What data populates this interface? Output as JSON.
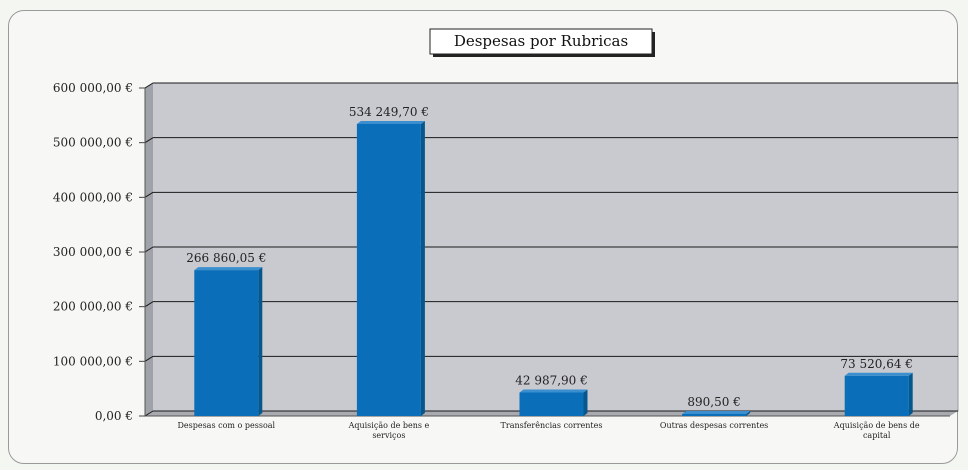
{
  "chart_data": {
    "type": "bar",
    "title": "Despesas por Rubricas",
    "categories": [
      [
        "Despesas com o pessoal"
      ],
      [
        "Aquisição de bens e",
        "serviços"
      ],
      [
        "Transferências correntes"
      ],
      [
        "Outras despesas correntes"
      ],
      [
        "Aquisição de bens de",
        "capital"
      ]
    ],
    "values": [
      266860.05,
      534249.7,
      42987.9,
      890.5,
      73520.64
    ],
    "value_labels": [
      "266 860,05 €",
      "534 249,70 €",
      "42 987,90 €",
      "890,50 €",
      "73 520,64 €"
    ],
    "yticks": [
      0,
      100000,
      200000,
      300000,
      400000,
      500000,
      600000
    ],
    "ytick_labels": [
      "0,00 €",
      "100 000,00 €",
      "200 000,00 €",
      "300 000,00 €",
      "400 000,00 €",
      "500 000,00 €",
      "600 000,00 €"
    ],
    "ylim": [
      0,
      600000
    ],
    "grid": true,
    "colors": {
      "bar": "#0a6fb8",
      "bar_dark": "#07578f",
      "plot_bg": "#c8cad0",
      "grid": "#1a1a1a"
    }
  }
}
